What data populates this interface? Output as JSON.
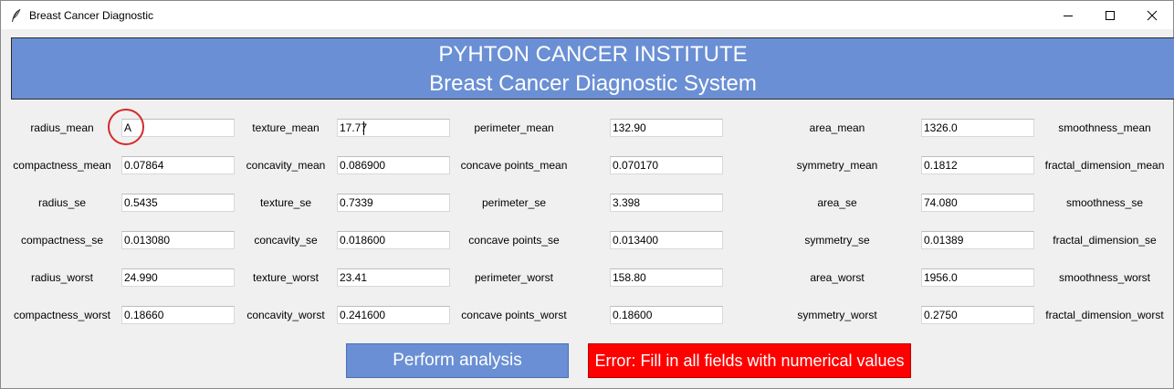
{
  "window": {
    "title": "Breast Cancer Diagnostic",
    "icon": "feather-icon",
    "controls": [
      "minimize-icon",
      "maximize-icon",
      "close-icon"
    ]
  },
  "banner": {
    "line1": "PYHTON CANCER INSTITUTE",
    "line2": "Breast Cancer Diagnostic System",
    "background": "#6a8fd4",
    "text_color": "#ffffff"
  },
  "fields": [
    {
      "label": "radius_mean",
      "value": "A"
    },
    {
      "label": "texture_mean",
      "value": "17.77"
    },
    {
      "label": "perimeter_mean",
      "value": "132.90"
    },
    {
      "label": "area_mean",
      "value": "1326.0"
    },
    {
      "label": "smoothness_mean",
      "value": ""
    },
    {
      "label": "compactness_mean",
      "value": "0.07864"
    },
    {
      "label": "concavity_mean",
      "value": "0.086900"
    },
    {
      "label": "concave points_mean",
      "value": "0.070170"
    },
    {
      "label": "symmetry_mean",
      "value": "0.1812"
    },
    {
      "label": "fractal_dimension_mean",
      "value": ""
    },
    {
      "label": "radius_se",
      "value": "0.5435"
    },
    {
      "label": "texture_se",
      "value": "0.7339"
    },
    {
      "label": "perimeter_se",
      "value": "3.398"
    },
    {
      "label": "area_se",
      "value": "74.080"
    },
    {
      "label": "smoothness_se",
      "value": ""
    },
    {
      "label": "compactness_se",
      "value": "0.013080"
    },
    {
      "label": "concavity_se",
      "value": "0.018600"
    },
    {
      "label": "concave points_se",
      "value": "0.013400"
    },
    {
      "label": "symmetry_se",
      "value": "0.01389"
    },
    {
      "label": "fractal_dimension_se",
      "value": ""
    },
    {
      "label": "radius_worst",
      "value": "24.990"
    },
    {
      "label": "texture_worst",
      "value": "23.41"
    },
    {
      "label": "perimeter_worst",
      "value": "158.80"
    },
    {
      "label": "area_worst",
      "value": "1956.0"
    },
    {
      "label": "smoothness_worst",
      "value": ""
    },
    {
      "label": "compactness_worst",
      "value": "0.18660"
    },
    {
      "label": "concavity_worst",
      "value": "0.241600"
    },
    {
      "label": "concave points_worst",
      "value": "0.18600"
    },
    {
      "label": "symmetry_worst",
      "value": "0.2750"
    },
    {
      "label": "fractal_dimension_worst",
      "value": ""
    }
  ],
  "actions": {
    "analyze_label": "Perform analysis",
    "analyze_color": "#6a8fd4",
    "error_text": "Error: Fill in all fields with numerical values",
    "error_color": "#ff0000"
  },
  "annotation": {
    "circle_color": "#d42a2a"
  }
}
